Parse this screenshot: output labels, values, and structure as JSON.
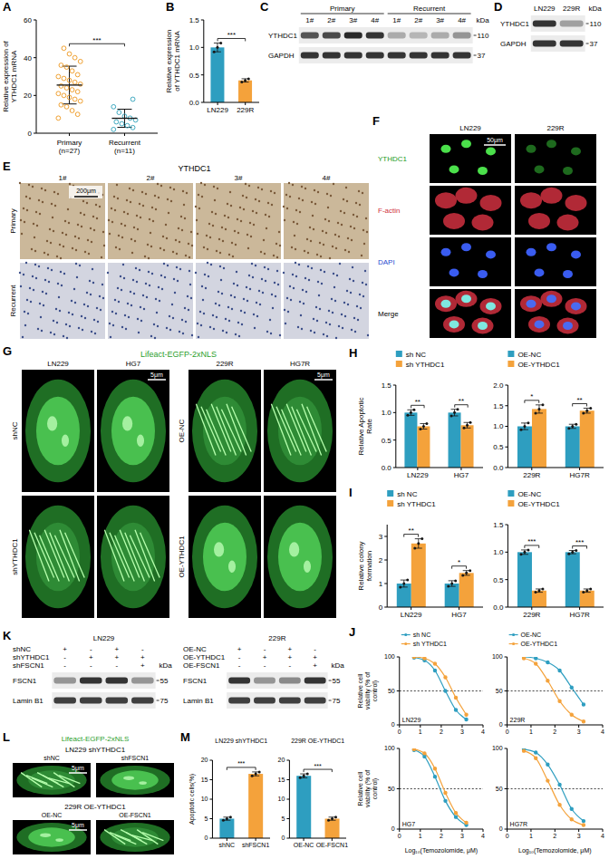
{
  "chart_data": [
    {
      "panel": "A",
      "type": "scatter",
      "ylabel": "Relative expression of YTHDC1 mRNA",
      "categories": [
        "Primary\n(n=27)",
        "Recurrent\n(n=11)"
      ],
      "colors": [
        "#f0a030",
        "#3fa9c0"
      ],
      "points": [
        [
          8,
          10,
          12,
          14,
          15,
          17,
          18,
          19,
          20,
          21,
          22,
          23,
          24,
          25,
          26,
          27,
          28,
          29,
          30,
          31,
          33,
          35,
          36,
          38,
          40,
          42,
          45
        ],
        [
          2,
          3,
          4,
          5,
          6,
          7,
          8,
          9,
          11,
          14,
          18
        ]
      ],
      "mean": [
        25.5,
        7.9
      ],
      "errors": [
        10,
        4.8
      ],
      "ylim": [
        0,
        60
      ],
      "yticks": [
        0,
        20,
        40,
        60
      ],
      "significance": [
        "***"
      ]
    },
    {
      "panel": "B",
      "type": "bar",
      "ylabel": "Relative expression of YTHDC1 mRNA",
      "categories": [
        "LN229",
        "229R"
      ],
      "values": [
        1,
        0.4
      ],
      "colors": [
        "#2e9ec0",
        "#f4a23b"
      ],
      "errors": [
        0.08,
        0.03
      ],
      "points": [
        [
          0.92,
          1,
          1.08
        ],
        [
          0.37,
          0.4,
          0.43
        ]
      ],
      "ylim": [
        0,
        1.5
      ],
      "yticks": [
        {
          "value": 0,
          "label": "0.0"
        },
        0.5,
        {
          "value": 1,
          "label": "1.0"
        },
        1.5
      ],
      "significance": [
        "***"
      ]
    },
    {
      "panel": "H",
      "type": "bar",
      "ylabel": "Relative Apoptotic Rate",
      "legend": "top",
      "categories": [
        "LN229",
        "HG7"
      ],
      "series": [
        {
          "name": "sh NC",
          "color": "#2e9ec0",
          "values": [
            1,
            1
          ],
          "errors": [
            0.05,
            0.06
          ],
          "points": [
            [
              0.95,
              1,
              1.05
            ],
            [
              0.94,
              1,
              1.06
            ]
          ]
        },
        {
          "name": "sh YTHDC1",
          "color": "#f4a23b",
          "values": [
            0.75,
            0.77
          ],
          "errors": [
            0.05,
            0.05
          ],
          "points": [
            [
              0.7,
              0.75,
              0.8
            ],
            [
              0.72,
              0.77,
              0.82
            ]
          ]
        }
      ],
      "ylim": [
        0,
        1.5
      ],
      "yticks": [
        {
          "value": 0,
          "label": "0.0"
        },
        0.5,
        {
          "value": 1,
          "label": "1.0"
        },
        1.5
      ],
      "significance": [
        "**",
        "**"
      ]
    },
    {
      "type": "bar",
      "legend": "top",
      "categories": [
        "229R",
        "HG7R"
      ],
      "series": [
        {
          "name": "OE-NC",
          "color": "#2e9ec0",
          "values": [
            1,
            1
          ],
          "errors": [
            0.08,
            0.05
          ],
          "points": [
            [
              0.92,
              1,
              1.08
            ],
            [
              0.95,
              1,
              1.05
            ]
          ]
        },
        {
          "name": "OE-YTHDC1",
          "color": "#f4a23b",
          "values": [
            1.42,
            1.38
          ],
          "errors": [
            0.1,
            0.06
          ],
          "points": [
            [
              1.32,
              1.42,
              1.52
            ],
            [
              1.32,
              1.38,
              1.44
            ]
          ]
        }
      ],
      "ylim": [
        0,
        2
      ],
      "yticks": [
        {
          "value": 0,
          "label": "0.0"
        },
        0.5,
        {
          "value": 1,
          "label": "1.0"
        },
        1.5,
        {
          "value": 2,
          "label": "2.0"
        }
      ],
      "significance": [
        "*",
        "**"
      ]
    },
    {
      "panel": "I",
      "type": "bar",
      "ylabel": "Relative colony formation",
      "legend": "top",
      "categories": [
        "LN229",
        "HG7"
      ],
      "series": [
        {
          "name": "sh NC",
          "color": "#2e9ec0",
          "values": [
            1,
            1
          ],
          "errors": [
            0.15,
            0.12
          ],
          "points": [
            [
              0.85,
              1,
              1.15
            ],
            [
              0.88,
              1,
              1.12
            ]
          ]
        },
        {
          "name": "sh YTHDC1",
          "color": "#f4a23b",
          "values": [
            2.7,
            1.45
          ],
          "errors": [
            0.2,
            0.1
          ],
          "points": [
            [
              2.5,
              2.7,
              2.9
            ],
            [
              1.35,
              1.45,
              1.55
            ]
          ]
        }
      ],
      "ylim": [
        0,
        3.5
      ],
      "yticks": [
        0,
        1,
        2,
        3
      ],
      "significance": [
        "**",
        "*"
      ]
    },
    {
      "type": "bar",
      "legend": "top",
      "categories": [
        "229R",
        "HG7R"
      ],
      "series": [
        {
          "name": "OE-NC",
          "color": "#2e9ec0",
          "values": [
            1,
            1
          ],
          "errors": [
            0.04,
            0.03
          ],
          "points": [
            [
              0.96,
              1,
              1.04
            ],
            [
              0.97,
              1,
              1.03
            ]
          ]
        },
        {
          "name": "OE-YTHDC1",
          "color": "#f4a23b",
          "values": [
            0.3,
            0.3
          ],
          "errors": [
            0.03,
            0.03
          ],
          "points": [
            [
              0.27,
              0.3,
              0.33
            ],
            [
              0.27,
              0.3,
              0.33
            ]
          ]
        }
      ],
      "ylim": [
        0,
        1.5
      ],
      "yticks": [
        {
          "value": 0,
          "label": "0.0"
        },
        0.5,
        {
          "value": 1,
          "label": "1.0"
        },
        1.5
      ],
      "significance": [
        "***",
        "***"
      ]
    },
    {
      "panel": "J",
      "type": "line",
      "label": "LN229",
      "legend": "top",
      "ylabel": "Relative cell viability (% of control)",
      "x": [
        0.7,
        1.2,
        1.7,
        2.2,
        2.7,
        3.2
      ],
      "series": [
        {
          "name": "sh NC",
          "color": "#2e9ec0",
          "values": [
            99,
            95,
            80,
            50,
            22,
            8
          ]
        },
        {
          "name": "sh YTHDC1",
          "color": "#f4a23b",
          "values": [
            100,
            98,
            90,
            70,
            40,
            15
          ]
        }
      ],
      "xlim": [
        0,
        4
      ],
      "xticks": [
        0,
        1,
        2,
        3,
        4
      ],
      "ylim": [
        0,
        100
      ],
      "yticks": [
        0,
        50,
        100
      ],
      "hline": 50
    },
    {
      "type": "line",
      "label": "229R",
      "legend": "top",
      "x": [
        0.7,
        1.2,
        1.7,
        2.2,
        2.7,
        3.2
      ],
      "series": [
        {
          "name": "OE-NC",
          "color": "#2e9ec0",
          "values": [
            100,
            98,
            92,
            80,
            55,
            30
          ]
        },
        {
          "name": "OE-YTHDC1",
          "color": "#f4a23b",
          "values": [
            98,
            90,
            65,
            35,
            15,
            5
          ]
        }
      ],
      "xlim": [
        0,
        4
      ],
      "xticks": [
        0,
        1,
        2,
        3,
        4
      ],
      "ylim": [
        0,
        100
      ],
      "yticks": [
        0,
        50,
        100
      ],
      "hline": 50
    },
    {
      "type": "line",
      "label": "HG7",
      "ylabel": "Relative cell viability (% of control)",
      "xlabel": "Log₁₀(Temozolomide, μM)",
      "x": [
        0.7,
        1.2,
        1.7,
        2.2,
        2.7,
        3.2
      ],
      "series": [
        {
          "color": "#2e9ec0",
          "values": [
            98,
            90,
            65,
            35,
            15,
            5
          ]
        },
        {
          "color": "#f4a23b",
          "values": [
            99,
            94,
            75,
            45,
            20,
            8
          ]
        }
      ],
      "xlim": [
        0,
        4
      ],
      "xticks": [
        0,
        1,
        2,
        3,
        4
      ],
      "ylim": [
        0,
        100
      ],
      "yticks": [
        0,
        50,
        100
      ],
      "hline": 50
    },
    {
      "type": "line",
      "label": "HG7R",
      "xlabel": "Log₁₀(Temozolomide, μM)",
      "x": [
        0.7,
        1.2,
        1.7,
        2.2,
        2.7,
        3.2
      ],
      "series": [
        {
          "color": "#2e9ec0",
          "values": [
            99,
            95,
            80,
            55,
            25,
            10
          ]
        },
        {
          "color": "#f4a23b",
          "values": [
            97,
            88,
            60,
            30,
            12,
            5
          ]
        }
      ],
      "xlim": [
        0,
        4
      ],
      "xticks": [
        0,
        1,
        2,
        3,
        4
      ],
      "ylim": [
        0,
        100
      ],
      "yticks": [
        0,
        50,
        100
      ],
      "hline": 50
    },
    {
      "panel": "M",
      "type": "bar",
      "title": "LN229 shYTHDC1",
      "ylabel": "Apoptotic cells(%)",
      "categories": [
        "shNC",
        "shFSCN1"
      ],
      "values": [
        5,
        16.5
      ],
      "colors": [
        "#2e9ec0",
        "#f4a23b"
      ],
      "errors": [
        0.4,
        0.5
      ],
      "points": [
        [
          4.6,
          5,
          5.4
        ],
        [
          16,
          16.5,
          17
        ]
      ],
      "ylim": [
        0,
        20
      ],
      "yticks": [
        0,
        5,
        10,
        15,
        20
      ],
      "significance": [
        "***"
      ]
    },
    {
      "type": "bar",
      "title": "229R OE-YTHDC1",
      "categories": [
        "OE-NC",
        "OE-FSCN1"
      ],
      "values": [
        16,
        5
      ],
      "colors": [
        "#2e9ec0",
        "#f4a23b"
      ],
      "errors": [
        0.5,
        0.4
      ],
      "points": [
        [
          15.5,
          16,
          16.5
        ],
        [
          4.6,
          5,
          5.4
        ]
      ],
      "ylim": [
        0,
        20
      ],
      "yticks": [
        0,
        5,
        10,
        15,
        20
      ],
      "significance": [
        "***"
      ]
    }
  ],
  "blots": [
    {
      "panel": "C",
      "groups": [
        {
          "label": "Primary",
          "lanes": [
            "1#",
            "2#",
            "3#",
            "4#"
          ]
        },
        {
          "label": "Recurrent",
          "lanes": [
            "1#",
            "2#",
            "3#",
            "4#"
          ]
        }
      ],
      "unit": "kDa",
      "rows": [
        {
          "name": "YTHDC1",
          "kda": "110",
          "intensity": [
            0.7,
            0.75,
            0.9,
            0.85,
            0.3,
            0.25,
            0.3,
            0.4
          ]
        },
        {
          "name": "GAPDH",
          "kda": "37",
          "intensity": [
            0.85,
            0.85,
            0.85,
            0.85,
            0.85,
            0.85,
            0.85,
            0.85
          ]
        }
      ]
    },
    {
      "panel": "D",
      "lanes": [
        "LN229",
        "229R"
      ],
      "unit": "kDa",
      "rows": [
        {
          "name": "YTHDC1",
          "kda": "110",
          "intensity": [
            0.85,
            0.35
          ]
        },
        {
          "name": "GAPDH",
          "kda": "37",
          "intensity": [
            0.85,
            0.85
          ]
        }
      ]
    },
    {
      "panel": "K",
      "title": "LN229",
      "conditions": [
        {
          "name": "shNC",
          "signs": [
            "+",
            "-",
            "+",
            "-"
          ]
        },
        {
          "name": "shYTHDC1",
          "signs": [
            "-",
            "+",
            "+",
            "+"
          ]
        },
        {
          "name": "shFSCN1",
          "signs": [
            "-",
            "-",
            "-",
            "+"
          ]
        }
      ],
      "unit": "kDa",
      "rows": [
        {
          "name": "FSCN1",
          "kda": "55",
          "intensity": [
            0.4,
            0.85,
            0.85,
            0.4
          ]
        },
        {
          "name": "Lamin B1",
          "kda": "75",
          "intensity": [
            0.8,
            0.8,
            0.8,
            0.8
          ]
        }
      ]
    },
    {
      "title": "229R",
      "conditions": [
        {
          "name": "OE-NC",
          "signs": [
            "+",
            "-",
            "+",
            "-"
          ]
        },
        {
          "name": "OE-YTHDC1",
          "signs": [
            "-",
            "+",
            "+",
            "+"
          ]
        },
        {
          "name": "OE-FSCN1",
          "signs": [
            "-",
            "-",
            "-",
            "+"
          ]
        }
      ],
      "unit": "kDa",
      "rows": [
        {
          "name": "FSCN1",
          "kda": "55",
          "intensity": [
            0.85,
            0.4,
            0.45,
            0.85
          ]
        },
        {
          "name": "Lamin B1",
          "kda": "75",
          "intensity": [
            0.8,
            0.8,
            0.8,
            0.8
          ]
        }
      ]
    }
  ],
  "images": [
    {
      "panel": "E",
      "title": "YTHDC1",
      "columns": [
        "1#",
        "2#",
        "3#",
        "4#"
      ],
      "rows": [
        "Primary",
        "Recurrent"
      ],
      "scale_bar": "200μm"
    },
    {
      "panel": "F",
      "columns": [
        "LN229",
        "229R"
      ],
      "rows": [
        "YTHDC1",
        "F-actin",
        "DAPI",
        "Merge"
      ],
      "scale_bar": "50μm"
    },
    {
      "panel": "G",
      "title": "Lifeact-EGFP-2xNLS",
      "blocks": [
        {
          "columns": [
            "LN229",
            "HG7"
          ],
          "rows": [
            "shNC",
            "shYTHDC1"
          ]
        },
        {
          "columns": [
            "229R",
            "HG7R"
          ],
          "rows": [
            "OE-NC",
            "OE-YTHDC1"
          ]
        }
      ],
      "scale_bar": "5μm"
    },
    {
      "panel": "L",
      "title": "Lifeact-EGFP-2xNLS",
      "blocks": [
        {
          "title": "LN229 shYTHDC1",
          "columns": [
            "shNC",
            "shFSCN1"
          ]
        },
        {
          "title": "229R OE-YTHDC1",
          "columns": [
            "OE-NC",
            "OE-FSCN1"
          ]
        }
      ],
      "scale_bar": "5μm"
    }
  ]
}
